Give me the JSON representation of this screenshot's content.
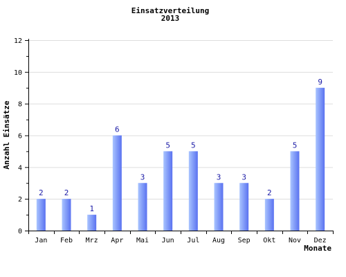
{
  "chart_data": {
    "type": "bar",
    "title": "Einsatzverteilung",
    "subtitle": "2013",
    "xlabel": "Monate",
    "ylabel": "Anzahl Einsätze",
    "categories": [
      "Jan",
      "Feb",
      "Mrz",
      "Apr",
      "Mai",
      "Jun",
      "Jul",
      "Aug",
      "Sep",
      "Okt",
      "Nov",
      "Dez"
    ],
    "values": [
      2,
      2,
      1,
      6,
      3,
      5,
      5,
      3,
      3,
      2,
      5,
      9
    ],
    "ylim": [
      0,
      12
    ],
    "yticks": [
      0,
      2,
      4,
      6,
      8,
      10,
      12
    ],
    "grid": true,
    "legend": "none",
    "colors": {
      "bar_light": "#a9c4ff",
      "bar_dark": "#5a72f0",
      "grid": "#dddddd",
      "data_label": "#1a1aa6"
    }
  }
}
